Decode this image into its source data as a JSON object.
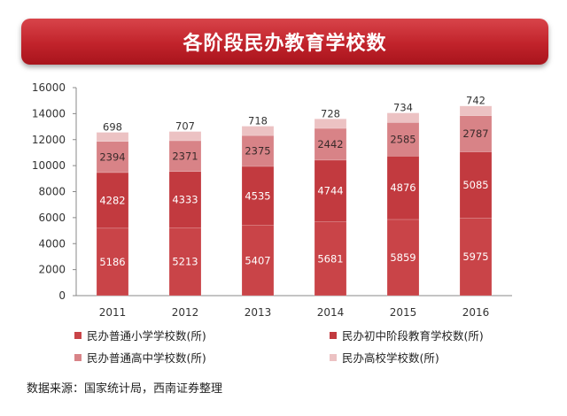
{
  "title": "各阶段民办教育学校数",
  "source": "数据来源：国家统计局，西南证券整理",
  "colors": {
    "banner": "#c1232b",
    "primary": "#c94448",
    "junior": "#c23a3f",
    "senior": "#d88387",
    "college": "#ecc2c3"
  },
  "chart_data": {
    "type": "bar",
    "stacked": true,
    "categories": [
      "2011",
      "2012",
      "2013",
      "2014",
      "2015",
      "2016"
    ],
    "ylim": [
      0,
      16000
    ],
    "yticks": [
      "0",
      "2000",
      "4000",
      "6000",
      "8000",
      "10000",
      "12000",
      "14000",
      "16000"
    ],
    "legend_position": "bottom",
    "series": [
      {
        "name": "民办普通小学学校数(所)",
        "values": [
          5186,
          5213,
          5407,
          5681,
          5859,
          5975
        ],
        "color": "#c94448"
      },
      {
        "name": "民办初中阶段教育学校数(所)",
        "values": [
          4282,
          4333,
          4535,
          4744,
          4876,
          5085
        ],
        "color": "#c23a3f"
      },
      {
        "name": "民办普通高中学校数(所)",
        "values": [
          2394,
          2371,
          2375,
          2442,
          2585,
          2787
        ],
        "color": "#d88387"
      },
      {
        "name": "民办高校学校数(所)",
        "values": [
          698,
          707,
          718,
          728,
          734,
          742
        ],
        "color": "#ecc2c3"
      }
    ]
  }
}
